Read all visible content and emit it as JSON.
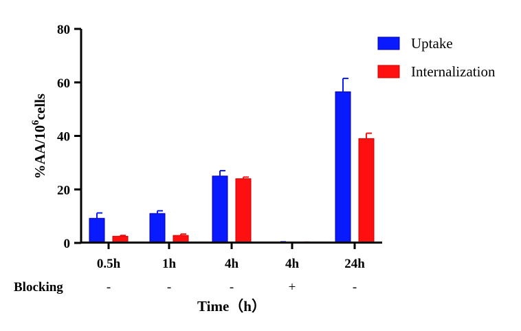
{
  "chart_data": {
    "type": "bar",
    "categories": [
      "0.5h",
      "1h",
      "4h",
      "4h",
      "24h"
    ],
    "blocking_label": "Blocking",
    "blocking": [
      "-",
      "-",
      "-",
      "+",
      "-"
    ],
    "series": [
      {
        "name": "Uptake",
        "color": "#0a1aff",
        "values": [
          9.2,
          11.0,
          25.0,
          0.3,
          56.5
        ],
        "errors": [
          2.0,
          1.0,
          2.0,
          0.1,
          5.0
        ]
      },
      {
        "name": "Internalization",
        "color": "#ff1010",
        "values": [
          2.5,
          2.8,
          24.0,
          0.2,
          39.0
        ],
        "errors": [
          0.3,
          0.5,
          0.6,
          0.1,
          2.0
        ]
      }
    ],
    "ylim": [
      0,
      80
    ],
    "yticks": [
      0,
      20,
      40,
      60,
      80
    ],
    "ylabel_prefix": "%AA/10",
    "ylabel_sup": "6",
    "ylabel_suffix": "cells",
    "xlabel": "Time（h）",
    "legend_position": "top-right"
  }
}
